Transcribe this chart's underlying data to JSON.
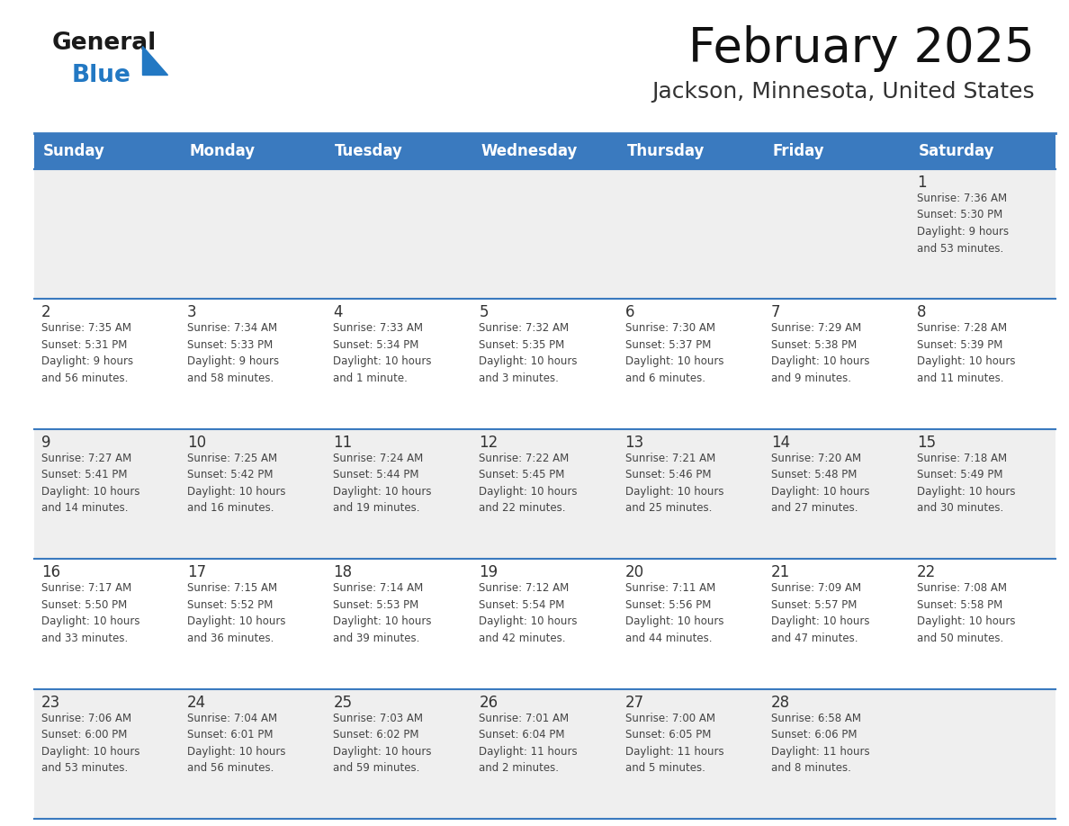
{
  "title": "February 2025",
  "subtitle": "Jackson, Minnesota, United States",
  "header_color": "#3a7abf",
  "header_text_color": "#ffffff",
  "cell_bg_gray": "#efefef",
  "cell_bg_white": "#ffffff",
  "day_number_color": "#333333",
  "cell_text_color": "#444444",
  "separator_color": "#3a7abf",
  "days_of_week": [
    "Sunday",
    "Monday",
    "Tuesday",
    "Wednesday",
    "Thursday",
    "Friday",
    "Saturday"
  ],
  "weeks": [
    [
      {
        "day": null,
        "text": ""
      },
      {
        "day": null,
        "text": ""
      },
      {
        "day": null,
        "text": ""
      },
      {
        "day": null,
        "text": ""
      },
      {
        "day": null,
        "text": ""
      },
      {
        "day": null,
        "text": ""
      },
      {
        "day": 1,
        "text": "Sunrise: 7:36 AM\nSunset: 5:30 PM\nDaylight: 9 hours\nand 53 minutes."
      }
    ],
    [
      {
        "day": 2,
        "text": "Sunrise: 7:35 AM\nSunset: 5:31 PM\nDaylight: 9 hours\nand 56 minutes."
      },
      {
        "day": 3,
        "text": "Sunrise: 7:34 AM\nSunset: 5:33 PM\nDaylight: 9 hours\nand 58 minutes."
      },
      {
        "day": 4,
        "text": "Sunrise: 7:33 AM\nSunset: 5:34 PM\nDaylight: 10 hours\nand 1 minute."
      },
      {
        "day": 5,
        "text": "Sunrise: 7:32 AM\nSunset: 5:35 PM\nDaylight: 10 hours\nand 3 minutes."
      },
      {
        "day": 6,
        "text": "Sunrise: 7:30 AM\nSunset: 5:37 PM\nDaylight: 10 hours\nand 6 minutes."
      },
      {
        "day": 7,
        "text": "Sunrise: 7:29 AM\nSunset: 5:38 PM\nDaylight: 10 hours\nand 9 minutes."
      },
      {
        "day": 8,
        "text": "Sunrise: 7:28 AM\nSunset: 5:39 PM\nDaylight: 10 hours\nand 11 minutes."
      }
    ],
    [
      {
        "day": 9,
        "text": "Sunrise: 7:27 AM\nSunset: 5:41 PM\nDaylight: 10 hours\nand 14 minutes."
      },
      {
        "day": 10,
        "text": "Sunrise: 7:25 AM\nSunset: 5:42 PM\nDaylight: 10 hours\nand 16 minutes."
      },
      {
        "day": 11,
        "text": "Sunrise: 7:24 AM\nSunset: 5:44 PM\nDaylight: 10 hours\nand 19 minutes."
      },
      {
        "day": 12,
        "text": "Sunrise: 7:22 AM\nSunset: 5:45 PM\nDaylight: 10 hours\nand 22 minutes."
      },
      {
        "day": 13,
        "text": "Sunrise: 7:21 AM\nSunset: 5:46 PM\nDaylight: 10 hours\nand 25 minutes."
      },
      {
        "day": 14,
        "text": "Sunrise: 7:20 AM\nSunset: 5:48 PM\nDaylight: 10 hours\nand 27 minutes."
      },
      {
        "day": 15,
        "text": "Sunrise: 7:18 AM\nSunset: 5:49 PM\nDaylight: 10 hours\nand 30 minutes."
      }
    ],
    [
      {
        "day": 16,
        "text": "Sunrise: 7:17 AM\nSunset: 5:50 PM\nDaylight: 10 hours\nand 33 minutes."
      },
      {
        "day": 17,
        "text": "Sunrise: 7:15 AM\nSunset: 5:52 PM\nDaylight: 10 hours\nand 36 minutes."
      },
      {
        "day": 18,
        "text": "Sunrise: 7:14 AM\nSunset: 5:53 PM\nDaylight: 10 hours\nand 39 minutes."
      },
      {
        "day": 19,
        "text": "Sunrise: 7:12 AM\nSunset: 5:54 PM\nDaylight: 10 hours\nand 42 minutes."
      },
      {
        "day": 20,
        "text": "Sunrise: 7:11 AM\nSunset: 5:56 PM\nDaylight: 10 hours\nand 44 minutes."
      },
      {
        "day": 21,
        "text": "Sunrise: 7:09 AM\nSunset: 5:57 PM\nDaylight: 10 hours\nand 47 minutes."
      },
      {
        "day": 22,
        "text": "Sunrise: 7:08 AM\nSunset: 5:58 PM\nDaylight: 10 hours\nand 50 minutes."
      }
    ],
    [
      {
        "day": 23,
        "text": "Sunrise: 7:06 AM\nSunset: 6:00 PM\nDaylight: 10 hours\nand 53 minutes."
      },
      {
        "day": 24,
        "text": "Sunrise: 7:04 AM\nSunset: 6:01 PM\nDaylight: 10 hours\nand 56 minutes."
      },
      {
        "day": 25,
        "text": "Sunrise: 7:03 AM\nSunset: 6:02 PM\nDaylight: 10 hours\nand 59 minutes."
      },
      {
        "day": 26,
        "text": "Sunrise: 7:01 AM\nSunset: 6:04 PM\nDaylight: 11 hours\nand 2 minutes."
      },
      {
        "day": 27,
        "text": "Sunrise: 7:00 AM\nSunset: 6:05 PM\nDaylight: 11 hours\nand 5 minutes."
      },
      {
        "day": 28,
        "text": "Sunrise: 6:58 AM\nSunset: 6:06 PM\nDaylight: 11 hours\nand 8 minutes."
      },
      {
        "day": null,
        "text": ""
      }
    ]
  ],
  "logo_color_general": "#1a1a1a",
  "logo_color_blue": "#2278c3",
  "fig_width": 11.88,
  "fig_height": 9.18,
  "dpi": 100
}
